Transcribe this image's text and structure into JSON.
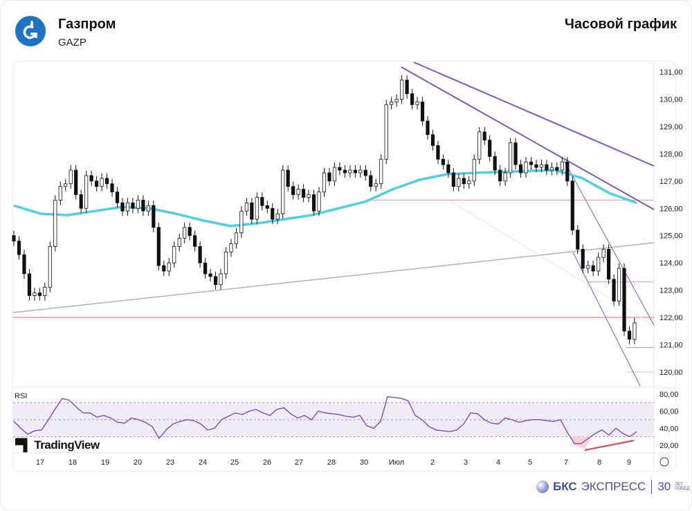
{
  "header": {
    "title": "Газпром",
    "ticker": "GAZP",
    "chart_type": "Часовой график"
  },
  "brand": {
    "name_bold": "БКС",
    "name": "ЭКСПРЕСС",
    "anniv_num": "30",
    "anniv_text1": "ЛЕТ",
    "anniv_text2": "ПОБЕД",
    "watermark": "TradingView"
  },
  "colors": {
    "ma": "#4dd0e1",
    "rsi": "#7e57c2",
    "trend": "#7e57c2",
    "level": "#f28b96",
    "support": "#b0b0b0",
    "logo": "#1a73c4"
  },
  "icons": {
    "logo": "gazprom-logo-icon",
    "settings": "settings-icon"
  },
  "chart_data": {
    "type": "candlestick",
    "x_ticks": [
      "17",
      "18",
      "19",
      "20",
      "23",
      "24",
      "25",
      "26",
      "27",
      "28",
      "30",
      "Июл",
      "2",
      "3",
      "4",
      "5",
      "7",
      "8",
      "9"
    ],
    "y_ticks": [
      "131,00",
      "130,00",
      "129,00",
      "128,00",
      "127,00",
      "126,00",
      "125,00",
      "124,00",
      "123,00",
      "122,00",
      "121,00",
      "120,00"
    ],
    "ylim": [
      119.5,
      131.4
    ],
    "closes": [
      124.8,
      124.3,
      123.6,
      122.8,
      122.9,
      122.8,
      123.1,
      124.6,
      126.3,
      126.8,
      126.9,
      127.4,
      126.5,
      126.0,
      127.2,
      127.0,
      126.8,
      127.1,
      126.9,
      126.6,
      126.2,
      125.9,
      126.2,
      126.0,
      126.3,
      125.9,
      126.1,
      125.3,
      123.9,
      123.7,
      124.0,
      124.6,
      124.9,
      125.3,
      125.0,
      124.6,
      124.0,
      123.6,
      123.5,
      123.2,
      123.6,
      124.4,
      124.7,
      125.1,
      125.9,
      126.2,
      125.6,
      126.4,
      126.1,
      126.0,
      125.6,
      125.8,
      127.4,
      126.8,
      126.5,
      126.7,
      126.4,
      126.5,
      125.9,
      126.6,
      127.3,
      127.0,
      127.5,
      127.4,
      127.3,
      127.4,
      127.3,
      127.4,
      127.2,
      126.8,
      126.9,
      127.8,
      129.8,
      129.9,
      130.0,
      130.7,
      130.2,
      129.8,
      129.9,
      129.2,
      128.7,
      128.3,
      127.8,
      127.6,
      127.3,
      126.8,
      127.1,
      126.9,
      127.0,
      127.8,
      128.8,
      128.5,
      127.9,
      127.4,
      127.0,
      127.3,
      128.4,
      127.6,
      127.3,
      127.7,
      127.6,
      127.5,
      127.6,
      127.4,
      127.5,
      127.4,
      127.7,
      127.0,
      125.2,
      124.5,
      123.8,
      123.9,
      123.7,
      124.2,
      124.5,
      123.4,
      122.6,
      123.8,
      121.5,
      121.2,
      121.8
    ],
    "moving_average": [
      126.1,
      125.8,
      125.75,
      125.9,
      126.05,
      126.0,
      125.8,
      125.55,
      125.35,
      125.45,
      125.6,
      125.75,
      126.0,
      126.25,
      126.7,
      127.05,
      127.25,
      127.3,
      127.33,
      127.37,
      127.4,
      127.1,
      126.55,
      126.2
    ],
    "levels": [
      126.3,
      122.0,
      123.3,
      120.9,
      120.0
    ],
    "rsi": {
      "label": "RSI",
      "y_ticks": [
        "80,00",
        "60,00",
        "40,00",
        "20,00"
      ],
      "ylim": [
        12,
        84
      ],
      "bands": [
        30,
        50,
        70
      ],
      "values": [
        48,
        40,
        33,
        37,
        38,
        50,
        63,
        75,
        73,
        65,
        58,
        58,
        53,
        55,
        52,
        47,
        46,
        52,
        50,
        47,
        42,
        28,
        38,
        45,
        48,
        50,
        49,
        45,
        38,
        40,
        50,
        54,
        58,
        56,
        60,
        62,
        58,
        55,
        62,
        64,
        57,
        52,
        55,
        50,
        60,
        58,
        57,
        56,
        54,
        53,
        55,
        43,
        40,
        48,
        77,
        76,
        75,
        72,
        55,
        50,
        42,
        38,
        37,
        36,
        38,
        45,
        58,
        57,
        50,
        46,
        45,
        52,
        50,
        47,
        49,
        50,
        50,
        49,
        48,
        50,
        35,
        22,
        22,
        28,
        34,
        38,
        32,
        40,
        34,
        30,
        36
      ]
    }
  }
}
